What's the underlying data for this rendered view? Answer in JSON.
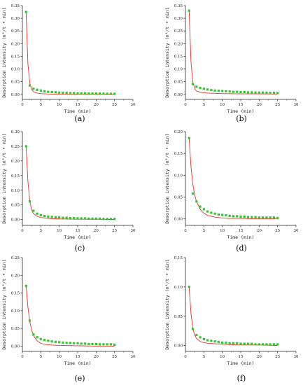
{
  "colors": {
    "fit_line": "#e8302a",
    "points": "#2ec82e",
    "axis": "#222222"
  },
  "chart_data": [
    {
      "type": "scatter",
      "panel_label": "(a)",
      "xlabel": "Time (min)",
      "ylabel": "Desorption intensity (m³/t • min)",
      "xlim": [
        0,
        30
      ],
      "ylim": [
        -0.02,
        0.35
      ],
      "xticks": [
        0,
        5,
        10,
        15,
        20,
        25,
        30
      ],
      "yticks": [
        0.0,
        0.05,
        0.1,
        0.15,
        0.2,
        0.25,
        0.3,
        0.35
      ],
      "ytick_labels": [
        "0.00",
        "0.05",
        "0.10",
        "0.15",
        "0.20",
        "0.25",
        "0.30",
        "0.35"
      ],
      "series": [
        {
          "type": "scatter",
          "x": [
            1,
            2,
            3,
            4,
            5,
            6,
            7,
            8,
            9,
            10,
            11,
            12,
            13,
            14,
            15,
            16,
            17,
            18,
            19,
            20,
            21,
            22,
            23,
            24,
            25
          ],
          "y": [
            0.325,
            0.035,
            0.022,
            0.018,
            0.015,
            0.012,
            0.01,
            0.009,
            0.008,
            0.007,
            0.006,
            0.006,
            0.005,
            0.005,
            0.004,
            0.004,
            0.004,
            0.003,
            0.003,
            0.003,
            0.003,
            0.003,
            0.002,
            0.002,
            0.002
          ]
        },
        {
          "type": "line",
          "x": [
            1,
            1.5,
            2,
            2.5,
            3,
            4,
            5,
            6,
            8,
            10,
            15,
            20,
            25
          ],
          "y": [
            0.325,
            0.12,
            0.045,
            0.02,
            0.01,
            0.005,
            0.003,
            0.002,
            0.001,
            0.001,
            0.0,
            0.0,
            0.0
          ]
        }
      ]
    },
    {
      "type": "scatter",
      "panel_label": "(b)",
      "xlabel": "Time (min)",
      "ylabel": "Desorption intensity (m³/t • min)",
      "xlim": [
        0,
        30
      ],
      "ylim": [
        -0.02,
        0.35
      ],
      "xticks": [
        0,
        5,
        10,
        15,
        20,
        25,
        30
      ],
      "yticks": [
        0.0,
        0.05,
        0.1,
        0.15,
        0.2,
        0.25,
        0.3,
        0.35
      ],
      "ytick_labels": [
        "0.00",
        "0.05",
        "0.10",
        "0.15",
        "0.20",
        "0.25",
        "0.30",
        "0.35"
      ],
      "series": [
        {
          "type": "scatter",
          "x": [
            1,
            2,
            3,
            4,
            5,
            6,
            7,
            8,
            9,
            10,
            11,
            12,
            13,
            14,
            15,
            16,
            17,
            18,
            19,
            20,
            21,
            22,
            23,
            24,
            25
          ],
          "y": [
            0.33,
            0.04,
            0.03,
            0.025,
            0.022,
            0.019,
            0.017,
            0.015,
            0.014,
            0.013,
            0.012,
            0.011,
            0.01,
            0.01,
            0.009,
            0.009,
            0.008,
            0.008,
            0.007,
            0.007,
            0.007,
            0.006,
            0.006,
            0.006,
            0.005
          ]
        },
        {
          "type": "line",
          "x": [
            1,
            1.5,
            2,
            2.5,
            3,
            4,
            5,
            6,
            8,
            10,
            15,
            20,
            25
          ],
          "y": [
            0.33,
            0.13,
            0.05,
            0.022,
            0.013,
            0.008,
            0.006,
            0.005,
            0.004,
            0.003,
            0.002,
            0.002,
            0.001
          ]
        }
      ]
    },
    {
      "type": "scatter",
      "panel_label": "(c)",
      "xlabel": "Time (min)",
      "ylabel": "Desorption intensity (m³/t • min)",
      "xlim": [
        0,
        30
      ],
      "ylim": [
        -0.02,
        0.3
      ],
      "xticks": [
        0,
        5,
        10,
        15,
        20,
        25,
        30
      ],
      "yticks": [
        0.0,
        0.05,
        0.1,
        0.15,
        0.2,
        0.25,
        0.3
      ],
      "ytick_labels": [
        "0.00",
        "0.05",
        "0.10",
        "0.15",
        "0.20",
        "0.25",
        "0.30"
      ],
      "series": [
        {
          "type": "scatter",
          "x": [
            1,
            2,
            3,
            4,
            5,
            6,
            7,
            8,
            9,
            10,
            11,
            12,
            13,
            14,
            15,
            16,
            17,
            18,
            19,
            20,
            21,
            22,
            23,
            24,
            25
          ],
          "y": [
            0.25,
            0.062,
            0.03,
            0.02,
            0.015,
            0.012,
            0.01,
            0.009,
            0.008,
            0.007,
            0.006,
            0.006,
            0.005,
            0.005,
            0.004,
            0.004,
            0.004,
            0.003,
            0.003,
            0.003,
            0.003,
            0.002,
            0.002,
            0.002,
            0.002
          ]
        },
        {
          "type": "line",
          "x": [
            1,
            1.5,
            2,
            2.5,
            3,
            4,
            5,
            6,
            8,
            10,
            15,
            20,
            25
          ],
          "y": [
            0.25,
            0.13,
            0.064,
            0.033,
            0.02,
            0.011,
            0.007,
            0.005,
            0.003,
            0.002,
            0.001,
            0.001,
            0.0
          ]
        }
      ]
    },
    {
      "type": "scatter",
      "panel_label": "(d)",
      "xlabel": "Time (min)",
      "ylabel": "Desorption intensity (m³/t • min)",
      "xlim": [
        0,
        30
      ],
      "ylim": [
        -0.015,
        0.2
      ],
      "xticks": [
        0,
        5,
        10,
        15,
        20,
        25,
        30
      ],
      "yticks": [
        0.0,
        0.05,
        0.1,
        0.15,
        0.2
      ],
      "ytick_labels": [
        "0.00",
        "0.05",
        "0.10",
        "0.15",
        "0.20"
      ],
      "series": [
        {
          "type": "scatter",
          "x": [
            1,
            2,
            3,
            4,
            5,
            6,
            7,
            8,
            9,
            10,
            11,
            12,
            13,
            14,
            15,
            16,
            17,
            18,
            19,
            20,
            21,
            22,
            23,
            24,
            25
          ],
          "y": [
            0.185,
            0.058,
            0.04,
            0.028,
            0.022,
            0.017,
            0.014,
            0.012,
            0.01,
            0.009,
            0.008,
            0.007,
            0.006,
            0.006,
            0.005,
            0.005,
            0.004,
            0.004,
            0.004,
            0.003,
            0.003,
            0.003,
            0.003,
            0.003,
            0.002
          ]
        },
        {
          "type": "line",
          "x": [
            1,
            1.5,
            2,
            2.5,
            3,
            4,
            5,
            6,
            8,
            10,
            12,
            15,
            20,
            25
          ],
          "y": [
            0.185,
            0.12,
            0.08,
            0.055,
            0.04,
            0.022,
            0.013,
            0.008,
            0.004,
            0.002,
            0.001,
            0.001,
            0.0,
            0.0
          ]
        }
      ]
    },
    {
      "type": "scatter",
      "panel_label": "(e)",
      "xlabel": "Time (min)",
      "ylabel": "Desorption intensity (m³/t • min)",
      "xlim": [
        0,
        30
      ],
      "ylim": [
        -0.015,
        0.25
      ],
      "xticks": [
        0,
        5,
        10,
        15,
        20,
        25,
        30
      ],
      "yticks": [
        0.0,
        0.05,
        0.1,
        0.15,
        0.2,
        0.25
      ],
      "ytick_labels": [
        "0.00",
        "0.05",
        "0.10",
        "0.15",
        "0.20",
        "0.25"
      ],
      "series": [
        {
          "type": "scatter",
          "x": [
            1,
            2,
            3,
            4,
            5,
            6,
            7,
            8,
            9,
            10,
            11,
            12,
            13,
            14,
            15,
            16,
            17,
            18,
            19,
            20,
            21,
            22,
            23,
            24,
            25
          ],
          "y": [
            0.17,
            0.072,
            0.033,
            0.025,
            0.02,
            0.017,
            0.015,
            0.013,
            0.012,
            0.011,
            0.01,
            0.009,
            0.009,
            0.008,
            0.008,
            0.007,
            0.007,
            0.006,
            0.006,
            0.006,
            0.005,
            0.005,
            0.005,
            0.005,
            0.004
          ]
        },
        {
          "type": "line",
          "x": [
            1,
            1.5,
            2,
            2.5,
            3,
            4,
            5,
            6,
            8,
            10,
            15,
            20,
            25
          ],
          "y": [
            0.17,
            0.11,
            0.07,
            0.045,
            0.03,
            0.015,
            0.008,
            0.005,
            0.003,
            0.002,
            0.001,
            0.0,
            0.0
          ]
        }
      ]
    },
    {
      "type": "scatter",
      "panel_label": "(f)",
      "xlabel": "Time (min)",
      "ylabel": "Desorption intensity (m³/t • min)",
      "xlim": [
        0,
        30
      ],
      "ylim": [
        -0.01,
        0.15
      ],
      "xticks": [
        0,
        5,
        10,
        15,
        20,
        25,
        30
      ],
      "yticks": [
        0.0,
        0.05,
        0.1,
        0.15
      ],
      "ytick_labels": [
        "0.00",
        "0.05",
        "0.10",
        "0.15"
      ],
      "series": [
        {
          "type": "scatter",
          "x": [
            1,
            2,
            3,
            4,
            5,
            6,
            7,
            8,
            9,
            10,
            11,
            12,
            13,
            14,
            15,
            16,
            17,
            18,
            19,
            20,
            21,
            22,
            23,
            24,
            25
          ],
          "y": [
            0.1,
            0.028,
            0.018,
            0.014,
            0.011,
            0.009,
            0.008,
            0.007,
            0.006,
            0.005,
            0.005,
            0.004,
            0.004,
            0.004,
            0.003,
            0.003,
            0.003,
            0.003,
            0.002,
            0.002,
            0.002,
            0.002,
            0.002,
            0.002,
            0.002
          ]
        },
        {
          "type": "line",
          "x": [
            1,
            1.5,
            2,
            2.5,
            3,
            4,
            5,
            6,
            8,
            10,
            15,
            20,
            25
          ],
          "y": [
            0.1,
            0.055,
            0.03,
            0.018,
            0.012,
            0.007,
            0.005,
            0.004,
            0.003,
            0.002,
            0.001,
            0.001,
            0.0
          ]
        }
      ]
    }
  ]
}
